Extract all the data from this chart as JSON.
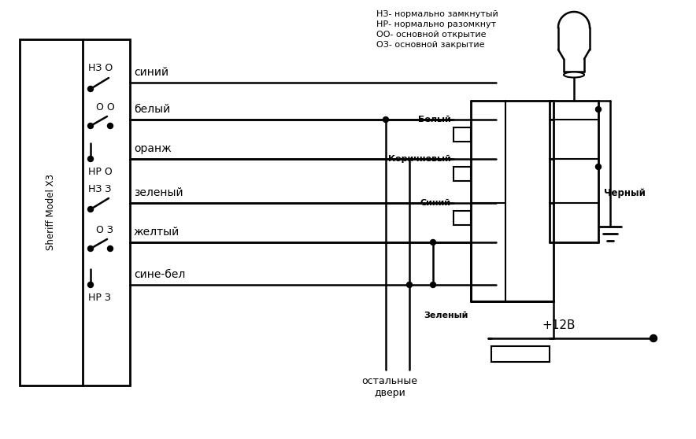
{
  "bg_color": "#ffffff",
  "legend_lines": [
    "НЗ- нормально замкнутый",
    "НР- нормально разомкнут",
    "ОО- основной открытие",
    "ОЗ- основной закрытие"
  ],
  "sheriff_label": "Sheriff Model X3",
  "row_labels": [
    "НЗ О",
    "О О",
    "НР О",
    "НЗ З",
    "О З",
    "НР З"
  ],
  "wire_names": [
    "синий",
    "белый",
    "оранж",
    "зеленый",
    "желтый",
    "сине-бел"
  ],
  "conn_labels": [
    "Белый",
    "Коричневый",
    "Синий",
    "Зеленый"
  ],
  "black_label": "Черный",
  "plus12": "+12В",
  "bottom1": "остальные",
  "bottom2": "двери"
}
